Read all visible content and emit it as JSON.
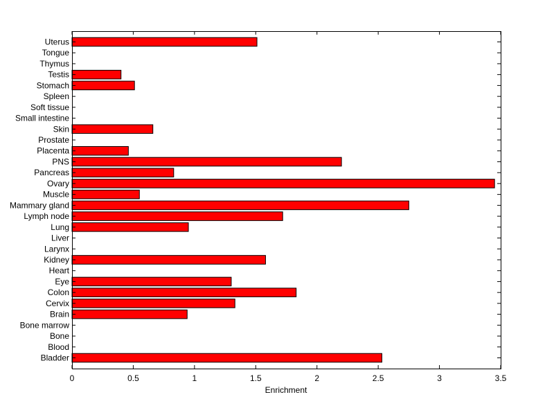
{
  "chart_data": {
    "type": "bar",
    "orientation": "horizontal",
    "xlabel": "Enrichment",
    "ylabel": "",
    "title": "",
    "xlim": [
      0,
      3.5
    ],
    "xticks": [
      0,
      0.5,
      1,
      1.5,
      2,
      2.5,
      3,
      3.5
    ],
    "xtick_labels": [
      "0",
      "0.5",
      "1",
      "1.5",
      "2",
      "2.5",
      "3",
      "3.5"
    ],
    "categories": [
      "Bladder",
      "Blood",
      "Bone",
      "Bone marrow",
      "Brain",
      "Cervix",
      "Colon",
      "Eye",
      "Heart",
      "Kidney",
      "Larynx",
      "Liver",
      "Lung",
      "Lymph node",
      "Mammary gland",
      "Muscle",
      "Ovary",
      "Pancreas",
      "PNS",
      "Placenta",
      "Prostate",
      "Skin",
      "Small intestine",
      "Soft tissue",
      "Spleen",
      "Stomach",
      "Testis",
      "Thymus",
      "Tongue",
      "Uterus"
    ],
    "values": [
      2.53,
      0,
      0,
      0,
      0.94,
      1.33,
      1.83,
      1.3,
      0,
      1.58,
      0,
      0,
      0.95,
      1.72,
      2.75,
      0.55,
      3.45,
      0.83,
      2.2,
      0.46,
      0,
      0.66,
      0,
      0,
      0,
      0.51,
      0.4,
      0,
      0,
      1.51
    ],
    "bar_color": "#ff0000",
    "bar_edge_color": "#000000",
    "grid": false,
    "legend": "none"
  }
}
